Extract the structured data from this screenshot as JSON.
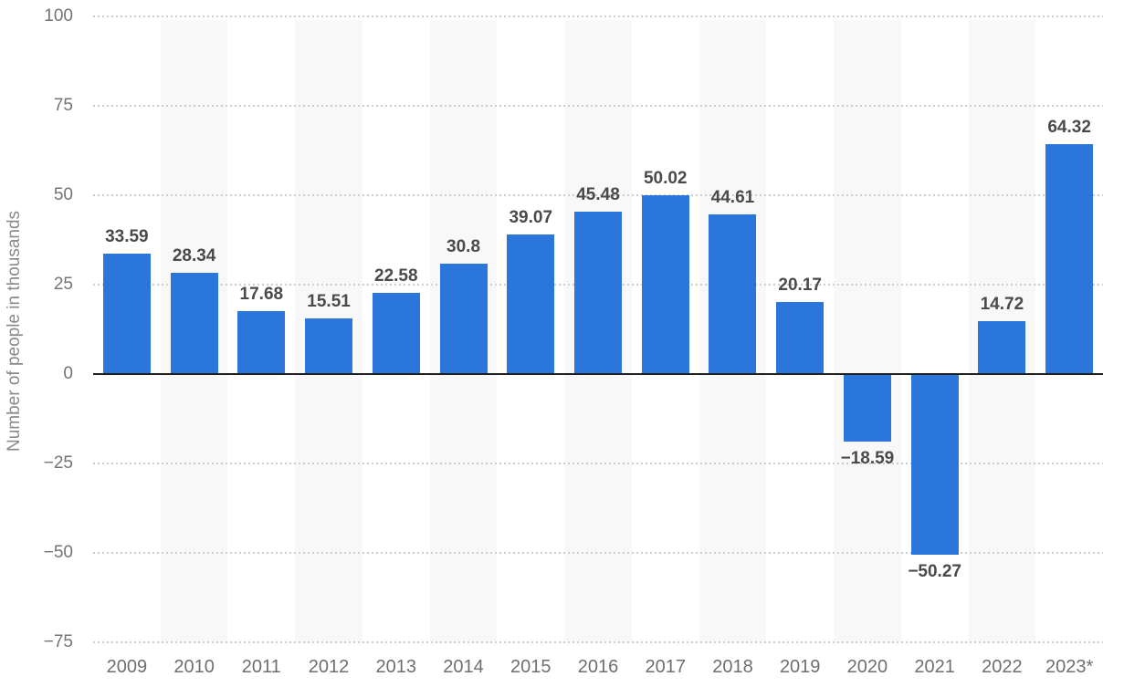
{
  "chart_data": {
    "type": "bar",
    "title": "",
    "xlabel": "",
    "ylabel": "Number of people in thousands",
    "categories": [
      "2009",
      "2010",
      "2011",
      "2012",
      "2013",
      "2014",
      "2015",
      "2016",
      "2017",
      "2018",
      "2019",
      "2020",
      "2021",
      "2022",
      "2023*"
    ],
    "values": [
      33.59,
      28.34,
      17.68,
      15.51,
      22.58,
      30.8,
      39.07,
      45.48,
      50.02,
      44.61,
      20.17,
      -18.59,
      -50.27,
      14.72,
      64.32
    ],
    "value_labels": [
      "33.59",
      "28.34",
      "17.68",
      "15.51",
      "22.58",
      "30.8",
      "39.07",
      "45.48",
      "50.02",
      "44.61",
      "20.17",
      "−18.59",
      "−50.27",
      "14.72",
      "64.32"
    ],
    "ylim": [
      -75,
      100
    ],
    "ytick_interval": 25,
    "yticks": [
      100,
      75,
      50,
      25,
      0,
      -25,
      -50,
      -75
    ],
    "ytick_labels": [
      "100",
      "75",
      "50",
      "25",
      "0",
      "−25",
      "−50",
      "−75"
    ],
    "grid": "horizontal-dotted",
    "legend_position": "none",
    "stripe_pattern": "alternate columns starting with second category",
    "colors": {
      "bar": "#2b76db",
      "value_label": "#4a4a4a",
      "tick_label": "#737373",
      "x_label": "#6f6f6f",
      "axis_title": "#8a8a8a",
      "gridline": "#cccccc",
      "zero_line": "#1f1f1f",
      "column_stripe": "#f8f8f8",
      "background": "#ffffff"
    }
  }
}
